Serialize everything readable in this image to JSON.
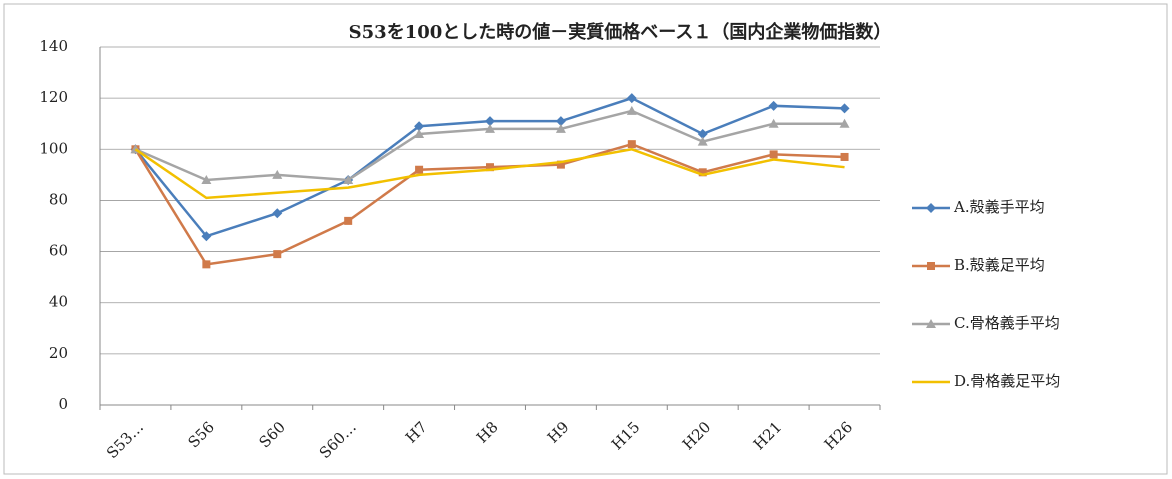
{
  "chart_data": {
    "type": "line",
    "title": "S53を100とした時の値－実質価格ベース１（国内企業物価指数）",
    "categories": [
      "S53…",
      "S56",
      "S60",
      "S60…",
      "H7",
      "H8",
      "H9",
      "H15",
      "H20",
      "H21",
      "H26"
    ],
    "series": [
      {
        "name": "A.殻義手平均",
        "color": "#4a7ebb",
        "marker": "diamond",
        "values": [
          100,
          66,
          75,
          88,
          109,
          111,
          111,
          120,
          106,
          117,
          116
        ]
      },
      {
        "name": "B.殻義足平均",
        "color": "#d07a4a",
        "marker": "square",
        "values": [
          100,
          55,
          59,
          72,
          92,
          93,
          94,
          102,
          91,
          98,
          97
        ]
      },
      {
        "name": "C.骨格義手平均",
        "color": "#a5a5a5",
        "marker": "triangle",
        "values": [
          100,
          88,
          90,
          88,
          106,
          108,
          108,
          115,
          103,
          110,
          110
        ]
      },
      {
        "name": "D.骨格義足平均",
        "color": "#f2c000",
        "marker": "none",
        "values": [
          100,
          81,
          83,
          85,
          90,
          92,
          95,
          100,
          90,
          96,
          93
        ]
      }
    ],
    "ylim": [
      0,
      140
    ],
    "yticks": [
      0,
      20,
      40,
      60,
      80,
      100,
      120,
      140
    ],
    "grid": true,
    "legend": "right"
  }
}
